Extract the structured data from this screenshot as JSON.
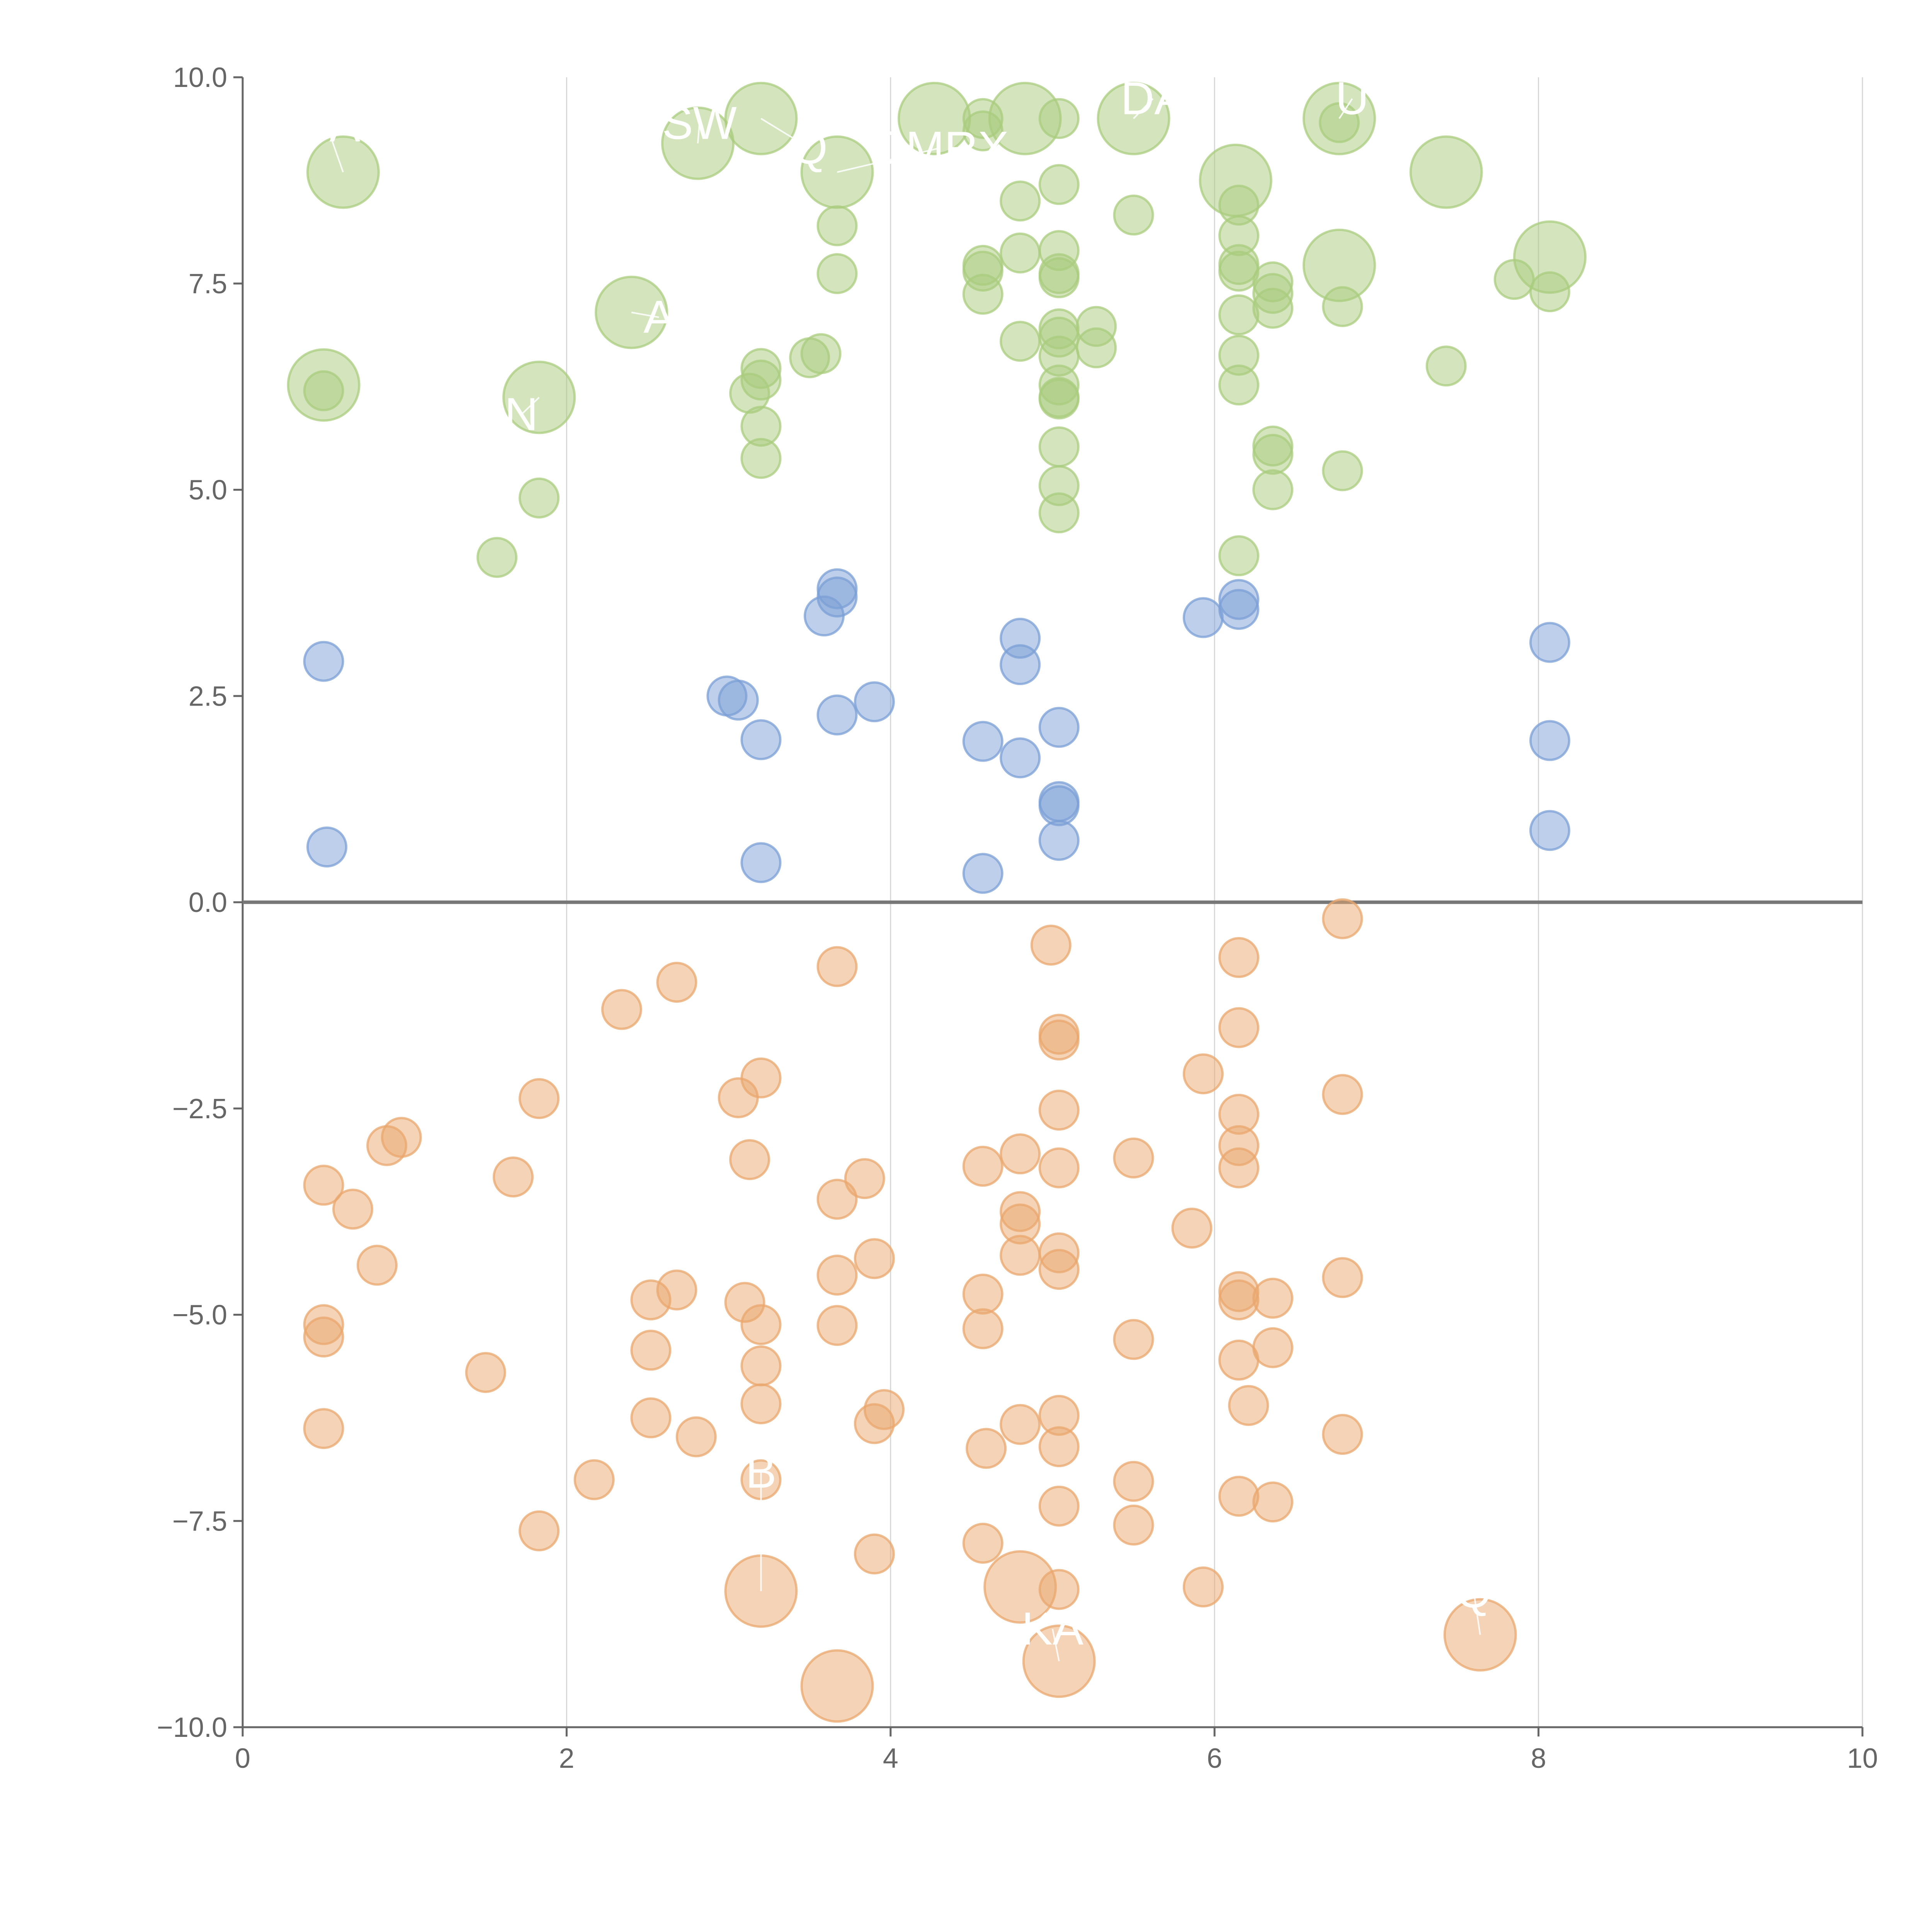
{
  "colors": {
    "green": "#a9cc7d",
    "blue": "#7b9fd6",
    "orange": "#e9a76d",
    "axis": "#666666",
    "grid": "#d6d6d6"
  },
  "chart_data": {
    "type": "scatter",
    "xlim": [
      0,
      10
    ],
    "ylim": [
      -10,
      10
    ],
    "x_ticks": [
      "0",
      "2",
      "4",
      "6",
      "8",
      "10"
    ],
    "y_ticks": [
      "10.0",
      "7.5",
      "5.0",
      "2.5",
      "0.0",
      "−2.5",
      "−5.0",
      "−7.5",
      "−10.0"
    ],
    "x_tick_values": [
      0,
      2,
      4,
      6,
      8,
      10
    ],
    "y_tick_values": [
      10,
      7.5,
      5,
      2.5,
      0,
      -2.5,
      -5,
      -7.5,
      -10
    ],
    "grid": "vertical",
    "zero_line": true,
    "series": [
      {
        "color": "green",
        "points": [
          [
            0.62,
            8.85,
            1
          ],
          [
            2.81,
            9.2,
            1
          ],
          [
            3.2,
            9.5,
            1
          ],
          [
            3.67,
            8.85,
            1
          ],
          [
            4.27,
            9.5,
            1
          ],
          [
            4.83,
            9.5,
            1
          ],
          [
            5.5,
            9.5,
            1
          ],
          [
            6.77,
            9.5,
            1
          ],
          [
            6.13,
            8.75,
            1
          ],
          [
            7.43,
            8.85,
            1
          ],
          [
            6.77,
            7.72,
            1
          ],
          [
            8.07,
            7.82,
            1
          ],
          [
            2.4,
            7.15,
            1
          ],
          [
            0.5,
            6.27,
            1
          ],
          [
            1.83,
            6.12,
            1
          ],
          [
            4.57,
            9.5,
            0
          ],
          [
            4.57,
            9.35,
            0
          ],
          [
            5.04,
            9.5,
            0
          ],
          [
            6.77,
            9.45,
            0
          ],
          [
            3.67,
            8.2,
            0
          ],
          [
            3.67,
            7.62,
            0
          ],
          [
            4.8,
            8.5,
            0
          ],
          [
            4.8,
            7.87,
            0
          ],
          [
            5.04,
            8.7,
            0
          ],
          [
            5.5,
            8.33,
            0
          ],
          [
            4.57,
            7.72,
            0
          ],
          [
            4.57,
            7.65,
            0
          ],
          [
            4.57,
            7.37,
            0
          ],
          [
            5.04,
            7.9,
            0
          ],
          [
            5.04,
            7.62,
            0
          ],
          [
            5.04,
            7.57,
            0
          ],
          [
            6.15,
            8.45,
            0
          ],
          [
            6.15,
            8.08,
            0
          ],
          [
            6.15,
            7.73,
            0
          ],
          [
            6.15,
            7.65,
            0
          ],
          [
            6.15,
            7.12,
            0
          ],
          [
            6.36,
            7.52,
            0
          ],
          [
            6.36,
            7.38,
            0
          ],
          [
            6.36,
            7.2,
            0
          ],
          [
            6.79,
            7.22,
            0
          ],
          [
            7.85,
            7.55,
            0
          ],
          [
            8.07,
            7.4,
            0
          ],
          [
            4.8,
            6.8,
            0
          ],
          [
            5.04,
            6.95,
            0
          ],
          [
            5.04,
            6.85,
            0
          ],
          [
            5.04,
            6.62,
            0
          ],
          [
            5.27,
            6.98,
            0
          ],
          [
            5.27,
            6.72,
            0
          ],
          [
            3.2,
            6.47,
            0
          ],
          [
            3.2,
            6.33,
            0
          ],
          [
            3.13,
            6.17,
            0
          ],
          [
            3.2,
            5.77,
            0
          ],
          [
            3.2,
            5.38,
            0
          ],
          [
            3.5,
            6.6,
            0
          ],
          [
            3.57,
            6.65,
            0
          ],
          [
            5.04,
            6.27,
            0
          ],
          [
            5.04,
            6.12,
            0
          ],
          [
            5.04,
            6.1,
            0
          ],
          [
            5.04,
            5.52,
            0
          ],
          [
            5.04,
            5.05,
            0
          ],
          [
            5.04,
            4.72,
            0
          ],
          [
            0.5,
            6.2,
            0
          ],
          [
            1.83,
            4.9,
            0
          ],
          [
            1.57,
            4.18,
            0
          ],
          [
            6.15,
            6.63,
            0
          ],
          [
            6.15,
            6.27,
            0
          ],
          [
            6.15,
            4.2,
            0
          ],
          [
            6.36,
            5.53,
            0
          ],
          [
            6.36,
            5.43,
            0
          ],
          [
            6.36,
            5.0,
            0
          ],
          [
            6.79,
            5.23,
            0
          ],
          [
            7.43,
            6.5,
            0
          ]
        ]
      },
      {
        "color": "blue",
        "points": [
          [
            0.5,
            2.92,
            0
          ],
          [
            0.52,
            0.67,
            0
          ],
          [
            2.99,
            2.5,
            0
          ],
          [
            3.06,
            2.45,
            0
          ],
          [
            3.2,
            1.97,
            0
          ],
          [
            3.2,
            0.48,
            0
          ],
          [
            3.59,
            3.47,
            0
          ],
          [
            3.67,
            3.8,
            0
          ],
          [
            3.67,
            3.7,
            0
          ],
          [
            3.67,
            2.27,
            0
          ],
          [
            3.9,
            2.43,
            0
          ],
          [
            4.57,
            1.95,
            0
          ],
          [
            4.57,
            0.35,
            0
          ],
          [
            4.8,
            3.2,
            0
          ],
          [
            4.8,
            2.88,
            0
          ],
          [
            4.8,
            1.75,
            0
          ],
          [
            5.04,
            2.12,
            0
          ],
          [
            5.04,
            1.22,
            0
          ],
          [
            5.04,
            1.17,
            0
          ],
          [
            5.04,
            0.75,
            0
          ],
          [
            5.93,
            3.45,
            0
          ],
          [
            6.15,
            3.67,
            0
          ],
          [
            6.15,
            3.55,
            0
          ],
          [
            8.07,
            3.15,
            0
          ],
          [
            8.07,
            1.96,
            0
          ],
          [
            8.07,
            0.87,
            0
          ]
        ]
      },
      {
        "color": "orange",
        "points": [
          [
            3.2,
            -8.35,
            1
          ],
          [
            4.8,
            -8.3,
            1
          ],
          [
            5.04,
            -9.2,
            1
          ],
          [
            3.67,
            -9.5,
            1
          ],
          [
            7.64,
            -8.88,
            1
          ],
          [
            6.79,
            -0.2,
            0
          ],
          [
            6.15,
            -0.67,
            0
          ],
          [
            4.99,
            -0.52,
            0
          ],
          [
            3.67,
            -0.78,
            0
          ],
          [
            2.68,
            -0.97,
            0
          ],
          [
            2.34,
            -1.3,
            0
          ],
          [
            5.04,
            -1.6,
            0
          ],
          [
            5.04,
            -1.67,
            0
          ],
          [
            6.15,
            -1.52,
            0
          ],
          [
            5.93,
            -2.08,
            0
          ],
          [
            6.79,
            -2.33,
            0
          ],
          [
            3.2,
            -2.13,
            0
          ],
          [
            3.06,
            -2.37,
            0
          ],
          [
            1.83,
            -2.38,
            0
          ],
          [
            5.04,
            -2.52,
            0
          ],
          [
            6.15,
            -2.57,
            0
          ],
          [
            0.89,
            -2.95,
            0
          ],
          [
            0.98,
            -2.85,
            0
          ],
          [
            3.13,
            -3.12,
            0
          ],
          [
            4.57,
            -3.2,
            0
          ],
          [
            4.8,
            -3.05,
            0
          ],
          [
            5.04,
            -3.22,
            0
          ],
          [
            5.5,
            -3.1,
            0
          ],
          [
            6.15,
            -2.95,
            0
          ],
          [
            6.15,
            -3.22,
            0
          ],
          [
            1.67,
            -3.33,
            0
          ],
          [
            0.5,
            -3.43,
            0
          ],
          [
            0.68,
            -3.72,
            0
          ],
          [
            3.67,
            -3.6,
            0
          ],
          [
            3.84,
            -3.35,
            0
          ],
          [
            4.8,
            -3.75,
            0
          ],
          [
            4.8,
            -3.9,
            0
          ],
          [
            5.86,
            -3.95,
            0
          ],
          [
            0.83,
            -4.4,
            0
          ],
          [
            3.9,
            -4.32,
            0
          ],
          [
            4.8,
            -4.28,
            0
          ],
          [
            5.04,
            -4.25,
            0
          ],
          [
            5.04,
            -4.45,
            0
          ],
          [
            3.67,
            -4.52,
            0
          ],
          [
            6.79,
            -4.55,
            0
          ],
          [
            2.68,
            -4.7,
            0
          ],
          [
            2.52,
            -4.82,
            0
          ],
          [
            3.1,
            -4.85,
            0
          ],
          [
            4.57,
            -4.75,
            0
          ],
          [
            6.15,
            -4.72,
            0
          ],
          [
            6.15,
            -4.82,
            0
          ],
          [
            6.36,
            -4.8,
            0
          ],
          [
            0.5,
            -5.12,
            0
          ],
          [
            0.5,
            -5.27,
            0
          ],
          [
            3.2,
            -5.12,
            0
          ],
          [
            3.67,
            -5.13,
            0
          ],
          [
            4.57,
            -5.17,
            0
          ],
          [
            2.52,
            -5.43,
            0
          ],
          [
            5.5,
            -5.3,
            0
          ],
          [
            6.36,
            -5.4,
            0
          ],
          [
            6.15,
            -5.55,
            0
          ],
          [
            1.5,
            -5.7,
            0
          ],
          [
            3.2,
            -5.62,
            0
          ],
          [
            3.2,
            -6.08,
            0
          ],
          [
            3.96,
            -6.15,
            0
          ],
          [
            3.9,
            -6.32,
            0
          ],
          [
            6.21,
            -6.1,
            0
          ],
          [
            2.52,
            -6.25,
            0
          ],
          [
            5.04,
            -6.22,
            0
          ],
          [
            4.8,
            -6.33,
            0
          ],
          [
            0.5,
            -6.38,
            0
          ],
          [
            2.8,
            -6.48,
            0
          ],
          [
            6.79,
            -6.45,
            0
          ],
          [
            4.59,
            -6.62,
            0
          ],
          [
            5.04,
            -6.6,
            0
          ],
          [
            2.17,
            -7.0,
            0
          ],
          [
            3.2,
            -7.0,
            0
          ],
          [
            5.5,
            -7.02,
            0
          ],
          [
            6.15,
            -7.2,
            0
          ],
          [
            6.36,
            -7.27,
            0
          ],
          [
            5.04,
            -7.32,
            0
          ],
          [
            1.83,
            -7.62,
            0
          ],
          [
            5.5,
            -7.55,
            0
          ],
          [
            4.57,
            -7.77,
            0
          ],
          [
            3.9,
            -7.9,
            0
          ],
          [
            5.04,
            -8.33,
            0
          ],
          [
            5.93,
            -8.3,
            0
          ]
        ]
      }
    ],
    "labels": [
      {
        "text": "OA",
        "x": 0.62,
        "y": 8.85,
        "tx": 0.52,
        "ty": 9.27
      },
      {
        "text": "SW",
        "x": 2.81,
        "y": 9.2,
        "tx": 2.82,
        "ty": 9.3
      },
      {
        "text": "Q",
        "x": 3.2,
        "y": 9.5,
        "tx": 3.5,
        "ty": 9.0
      },
      {
        "text": "OMRX",
        "x": 3.67,
        "y": 8.85,
        "tx": 4.3,
        "ty": 9.0
      },
      {
        "text": "DA",
        "x": 5.5,
        "y": 9.5,
        "tx": 5.62,
        "ty": 9.6
      },
      {
        "text": "U",
        "x": 6.77,
        "y": 9.5,
        "tx": 6.85,
        "ty": 9.6
      },
      {
        "text": "A",
        "x": 2.4,
        "y": 7.15,
        "tx": 2.57,
        "ty": 6.95
      },
      {
        "text": "N",
        "x": 1.83,
        "y": 6.12,
        "tx": 1.72,
        "ty": 5.77
      },
      {
        "text": "B",
        "x": 3.2,
        "y": -8.35,
        "tx": 3.2,
        "ty": -7.05
      },
      {
        "text": "KA",
        "x": 5.04,
        "y": -9.2,
        "tx": 5.0,
        "ty": -8.95
      },
      {
        "text": "Q",
        "x": 7.64,
        "y": -8.88,
        "tx": 7.6,
        "ty": -8.5
      }
    ]
  }
}
